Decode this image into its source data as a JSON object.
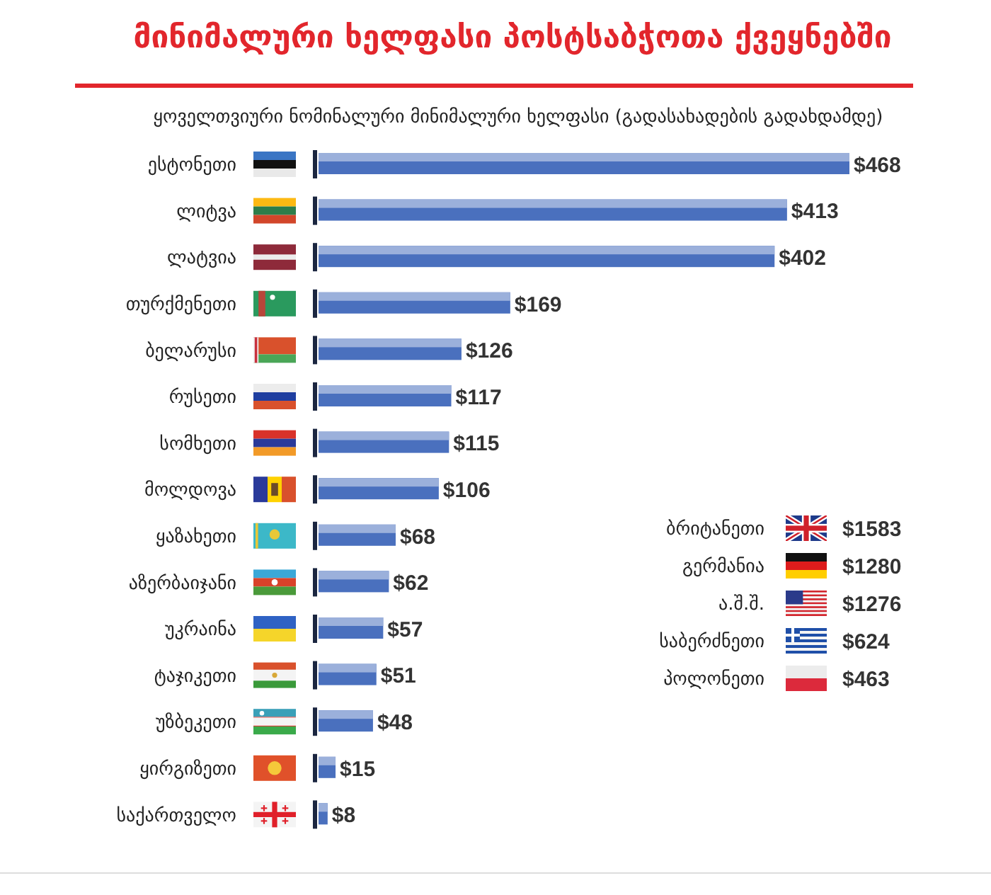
{
  "chart_data": [
    {
      "type": "bar",
      "orientation": "horizontal",
      "title": "მინიმალური ხელფასი პოსტსაბჭოთა ქვეყნებში",
      "subtitle": "ყოველთვიური ნომინალური მინიმალური ხელფასი (გადასახადების გადახდამდე)",
      "categories": [
        "ესტონეთი",
        "ლიტვა",
        "ლატვია",
        "თურქმენეთი",
        "ბელარუსი",
        "რუსეთი",
        "სომხეთი",
        "მოლდოვა",
        "ყაზახეთი",
        "აზერბაიჯანი",
        "უკრაინა",
        "ტაჯიკეთი",
        "უზბეკეთი",
        "ყირგიზეთი",
        "საქართველო"
      ],
      "values": [
        468,
        413,
        402,
        169,
        126,
        117,
        115,
        106,
        68,
        62,
        57,
        51,
        48,
        15,
        8
      ],
      "value_labels": [
        "$468",
        "$413",
        "$402",
        "$169",
        "$126",
        "$117",
        "$115",
        "$106",
        "$68",
        "$62",
        "$57",
        "$51",
        "$48",
        "$15",
        "$8"
      ],
      "color": "#4a70be"
    },
    {
      "type": "other",
      "categories": [
        "ბრიტანეთი",
        "გერმანია",
        "ა.შ.შ.",
        "საბერძნეთი",
        "პოლონეთი"
      ],
      "values": [
        1583,
        1280,
        1276,
        624,
        463
      ],
      "value_labels": [
        "$1583",
        "$1280",
        "$1276",
        "$624",
        "$463"
      ]
    }
  ]
}
